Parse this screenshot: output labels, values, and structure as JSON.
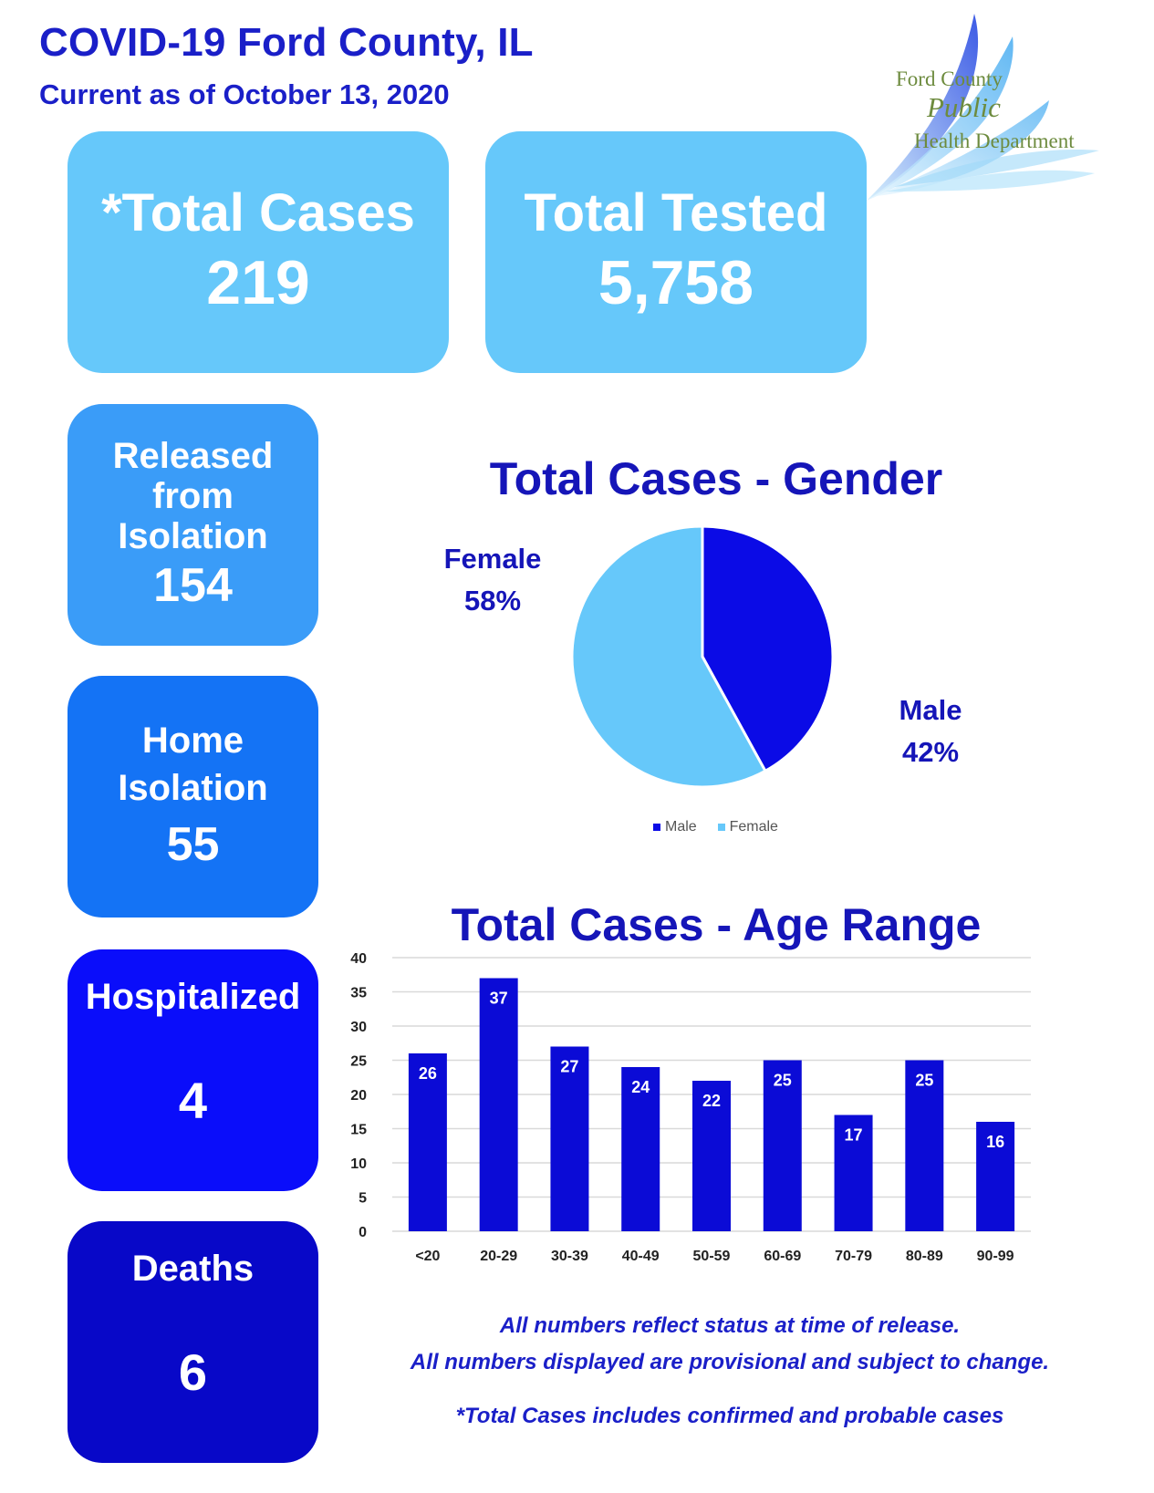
{
  "header": {
    "title": "COVID-19 Ford County, IL",
    "subtitle": "Current as of October 13, 2020"
  },
  "logo": {
    "line1": "Ford County",
    "line2": "Public",
    "line3": "Health Department"
  },
  "cards": {
    "total_cases": {
      "label": "*Total Cases",
      "value": "219"
    },
    "total_tested": {
      "label": "Total Tested",
      "value": "5,758"
    },
    "released": {
      "label_1": "Released",
      "label_2": "from",
      "label_3": "Isolation",
      "value": "154"
    },
    "home": {
      "label_1": "Home",
      "label_2": "Isolation",
      "value": "55"
    },
    "hospitalized": {
      "label": "Hospitalized",
      "value": "4"
    },
    "deaths": {
      "label": "Deaths",
      "value": "6"
    }
  },
  "colors": {
    "male": "#0b0be6",
    "female": "#66c8fa",
    "bar": "#0b0bd6",
    "grid": "#d9d9d9"
  },
  "footnotes": {
    "line1": "All numbers reflect status at time of release.",
    "line2": "All numbers displayed are provisional and subject to change.",
    "line3": "*Total Cases includes confirmed and probable cases"
  },
  "chart_data": [
    {
      "type": "pie",
      "title": "Total Cases - Gender",
      "categories": [
        "Male",
        "Female"
      ],
      "values": [
        42,
        58
      ],
      "labels": {
        "female_name": "Female",
        "female_pct": "58%",
        "male_name": "Male",
        "male_pct": "42%"
      },
      "legend": [
        "Male",
        "Female"
      ]
    },
    {
      "type": "bar",
      "title": "Total Cases - Age Range",
      "categories": [
        "<20",
        "20-29",
        "30-39",
        "40-49",
        "50-59",
        "60-69",
        "70-79",
        "80-89",
        "90-99"
      ],
      "values": [
        26,
        37,
        27,
        24,
        22,
        25,
        17,
        25,
        16
      ],
      "ylim": [
        0,
        40
      ],
      "yticks": [
        0,
        5,
        10,
        15,
        20,
        25,
        30,
        35,
        40
      ],
      "xlabel": "",
      "ylabel": "",
      "grid": true
    }
  ]
}
